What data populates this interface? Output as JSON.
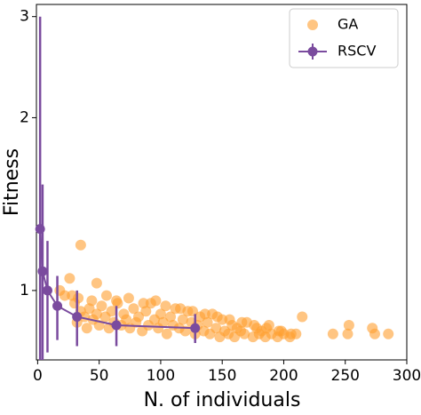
{
  "chart_data": {
    "type": "scatter-errorline",
    "xlabel": "N. of individuals",
    "ylabel": "Fitness",
    "xlim": [
      -1,
      300
    ],
    "ylim": [
      0.757,
      3.15
    ],
    "yscale": "log",
    "xticks": [
      0,
      50,
      100,
      150,
      200,
      250,
      300
    ],
    "yticks": [
      1,
      2,
      3
    ],
    "legend": "upper right",
    "series": [
      {
        "name": "GA",
        "kind": "scatter",
        "color": "#ff9f2e",
        "x": [
          30,
          32,
          35,
          38,
          40,
          42,
          45,
          48,
          50,
          52,
          55,
          58,
          60,
          62,
          65,
          68,
          70,
          72,
          75,
          78,
          80,
          82,
          85,
          88,
          90,
          92,
          95,
          98,
          100,
          102,
          105,
          108,
          110,
          112,
          115,
          118,
          120,
          122,
          125,
          128,
          130,
          132,
          135,
          138,
          140,
          142,
          145,
          148,
          150,
          152,
          155,
          158,
          160,
          162,
          165,
          168,
          170,
          175,
          178,
          180,
          182,
          185,
          188,
          190,
          195,
          198,
          200,
          205,
          210,
          28,
          33,
          44,
          56,
          64,
          74,
          86,
          96,
          104,
          116,
          126,
          136,
          146,
          156,
          166,
          176,
          186,
          196,
          206,
          35,
          26,
          48,
          18,
          215,
          253,
          272,
          240,
          285,
          274,
          252,
          22
        ],
        "values": [
          0.95,
          0.88,
          0.92,
          0.9,
          0.86,
          0.93,
          0.89,
          0.91,
          0.87,
          0.94,
          0.9,
          0.86,
          0.92,
          0.88,
          0.95,
          0.87,
          0.91,
          0.89,
          0.86,
          0.93,
          0.88,
          0.9,
          0.85,
          0.92,
          0.87,
          0.95,
          0.89,
          0.86,
          0.91,
          0.88,
          0.84,
          0.9,
          0.87,
          0.93,
          0.86,
          0.89,
          0.85,
          0.92,
          0.88,
          0.84,
          0.87,
          0.9,
          0.85,
          0.88,
          0.84,
          0.91,
          0.86,
          0.83,
          0.89,
          0.85,
          0.84,
          0.87,
          0.83,
          0.86,
          0.85,
          0.84,
          0.88,
          0.83,
          0.86,
          0.84,
          0.85,
          0.83,
          0.87,
          0.84,
          0.83,
          0.85,
          0.84,
          0.83,
          0.84,
          0.98,
          0.97,
          0.96,
          0.98,
          0.96,
          0.97,
          0.95,
          0.96,
          0.94,
          0.93,
          0.92,
          0.91,
          0.9,
          0.89,
          0.88,
          0.87,
          0.86,
          0.85,
          0.84,
          1.2,
          1.05,
          1.03,
          1.0,
          0.9,
          0.87,
          0.86,
          0.84,
          0.84,
          0.84,
          0.84,
          0.98
        ]
      },
      {
        "name": "RSCV",
        "kind": "errorline",
        "color": "#7a4b9e",
        "x": [
          2,
          4,
          8,
          16,
          32,
          64,
          128
        ],
        "values": [
          1.28,
          1.08,
          1.0,
          0.94,
          0.9,
          0.87,
          0.86
        ],
        "errors": [
          1.72,
          0.45,
          0.22,
          0.12,
          0.1,
          0.07,
          0.05
        ]
      }
    ]
  }
}
